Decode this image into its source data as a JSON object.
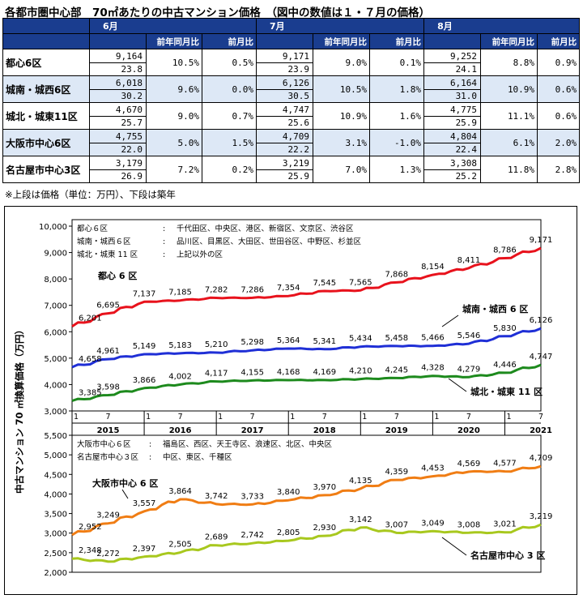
{
  "page_title": "各都市圏中心部　70㎡あたりの中古マンション価格　（図中の数値は１・７月の価格）",
  "table": {
    "months": [
      "6月",
      "7月",
      "8月"
    ],
    "sub_headers": [
      "前年同月比",
      "前月比"
    ],
    "rows": [
      {
        "region": "都心6区",
        "cols": [
          {
            "price": "9,164",
            "age": "23.8",
            "yoy": "10.5%",
            "mom": "0.5%"
          },
          {
            "price": "9,171",
            "age": "23.9",
            "yoy": "9.0%",
            "mom": "0.1%"
          },
          {
            "price": "9,252",
            "age": "24.1",
            "yoy": "8.8%",
            "mom": "0.9%"
          }
        ]
      },
      {
        "region": "城南・城西6区",
        "cols": [
          {
            "price": "6,018",
            "age": "30.2",
            "yoy": "9.6%",
            "mom": "0.0%"
          },
          {
            "price": "6,126",
            "age": "30.5",
            "yoy": "10.5%",
            "mom": "1.8%"
          },
          {
            "price": "6,164",
            "age": "31.0",
            "yoy": "10.9%",
            "mom": "0.6%"
          }
        ]
      },
      {
        "region": "城北・城東11区",
        "cols": [
          {
            "price": "4,670",
            "age": "25.7",
            "yoy": "9.0%",
            "mom": "0.7%"
          },
          {
            "price": "4,747",
            "age": "25.6",
            "yoy": "10.9%",
            "mom": "1.6%"
          },
          {
            "price": "4,775",
            "age": "25.9",
            "yoy": "11.1%",
            "mom": "0.6%"
          }
        ]
      },
      {
        "region": "大阪市中心6区",
        "cols": [
          {
            "price": "4,755",
            "age": "22.0",
            "yoy": "5.0%",
            "mom": "1.5%"
          },
          {
            "price": "4,709",
            "age": "22.2",
            "yoy": "3.1%",
            "mom": "-1.0%"
          },
          {
            "price": "4,804",
            "age": "22.4",
            "yoy": "6.1%",
            "mom": "2.0%"
          }
        ]
      },
      {
        "region": "名古屋市中心3区",
        "cols": [
          {
            "price": "3,179",
            "age": "26.9",
            "yoy": "7.2%",
            "mom": "0.2%"
          },
          {
            "price": "3,219",
            "age": "25.9",
            "yoy": "7.0%",
            "mom": "1.3%"
          },
          {
            "price": "3,308",
            "age": "25.2",
            "yoy": "11.8%",
            "mom": "2.8%"
          }
        ]
      }
    ],
    "note": "※上段は価格（単位：万円）、下段は築年"
  },
  "chart_data": {
    "type": "line",
    "ylabel": "中古マンション 70 ㎡換算価格（万円）",
    "x_start": "2015-01",
    "x_end": "2021-07",
    "month_tick_labels": [
      "1",
      "7"
    ],
    "year_labels": [
      "2015",
      "2016",
      "2017",
      "2018",
      "2019",
      "2020",
      "2021"
    ],
    "panels": [
      {
        "ylim": [
          3000,
          10000
        ],
        "yticks": [
          "3,000",
          "4,000",
          "5,000",
          "6,000",
          "7,000",
          "8,000",
          "9,000",
          "10,000"
        ],
        "ytick_values": [
          3000,
          4000,
          5000,
          6000,
          7000,
          8000,
          9000,
          10000
        ],
        "legend": [
          {
            "name": "都心６区",
            "desc": "千代田区、中央区、港区、新宿区、文京区、渋谷区"
          },
          {
            "name": "城南・城西６区",
            "desc": "品川区、目黒区、大田区、世田谷区、中野区、杉並区"
          },
          {
            "name": "城北・城東 11 区",
            "desc": "上記以外の区"
          }
        ],
        "series": [
          {
            "name": "都心６区",
            "color": "#e8121c",
            "labels": [
              "6,201",
              "6,695",
              "7,137",
              "7,185",
              "7,282",
              "7,286",
              "7,354",
              "7,545",
              "7,565",
              "7,868",
              "8,154",
              "8,411",
              "8,786",
              "9,171"
            ],
            "values": [
              6201,
              6695,
              7137,
              7185,
              7282,
              7286,
              7354,
              7545,
              7565,
              7868,
              8154,
              8411,
              8786,
              9171
            ]
          },
          {
            "name": "城南・城西６区",
            "color": "#1f2fd6",
            "labels": [
              "4,658",
              "4,961",
              "5,149",
              "5,183",
              "5,210",
              "5,298",
              "5,364",
              "5,341",
              "5,434",
              "5,458",
              "5,466",
              "5,546",
              "5,830",
              "6,126"
            ],
            "values": [
              4658,
              4961,
              5149,
              5183,
              5210,
              5298,
              5364,
              5341,
              5434,
              5458,
              5466,
              5546,
              5830,
              6126
            ]
          },
          {
            "name": "城北・城東 11 区",
            "color": "#1d8a1d",
            "labels": [
              "3,385",
              "3,598",
              "3,866",
              "4,002",
              "4,117",
              "4,155",
              "4,168",
              "4,169",
              "4,210",
              "4,245",
              "4,328",
              "4,279",
              "4,446",
              "4,747"
            ],
            "values": [
              3385,
              3598,
              3866,
              4002,
              4117,
              4155,
              4168,
              4169,
              4210,
              4245,
              4328,
              4279,
              4446,
              4747
            ]
          }
        ],
        "series_callouts": [
          "都心 6 区",
          "城南・城西 6 区",
          "城北・城東 11 区"
        ]
      },
      {
        "ylim": [
          2000,
          5500
        ],
        "yticks": [
          "2,000",
          "2,500",
          "3,000",
          "3,500",
          "4,000",
          "4,500",
          "5,000",
          "5,500"
        ],
        "ytick_values": [
          2000,
          2500,
          3000,
          3500,
          4000,
          4500,
          5000,
          5500
        ],
        "legend": [
          {
            "name": "大阪市中心６区",
            "desc": "福島区、西区、天王寺区、浪速区、北区、中央区"
          },
          {
            "name": "名古屋市中心３区",
            "desc": "中区、東区、千種区"
          }
        ],
        "series": [
          {
            "name": "大阪市中心６区",
            "color": "#f07d14",
            "labels": [
              "2,952",
              "3,249",
              "3,557",
              "3,864",
              "3,742",
              "3,733",
              "3,840",
              "3,970",
              "4,135",
              "4,359",
              "4,453",
              "4,569",
              "4,577",
              "4,709"
            ],
            "values": [
              2952,
              3249,
              3557,
              3864,
              3742,
              3733,
              3840,
              3970,
              4135,
              4359,
              4453,
              4569,
              4577,
              4709
            ]
          },
          {
            "name": "名古屋市中心３区",
            "color": "#a8c81e",
            "labels": [
              "2,348",
              "2,272",
              "2,397",
              "2,505",
              "2,689",
              "2,742",
              "2,805",
              "2,930",
              "3,142",
              "3,007",
              "3,049",
              "3,008",
              "3,021",
              "3,219"
            ],
            "values": [
              2348,
              2272,
              2397,
              2505,
              2689,
              2742,
              2805,
              2930,
              3142,
              3007,
              3049,
              3008,
              3021,
              3219
            ]
          }
        ],
        "series_callouts": [
          "大阪市中心 6 区",
          "名古屋市中心 3 区"
        ]
      }
    ]
  }
}
